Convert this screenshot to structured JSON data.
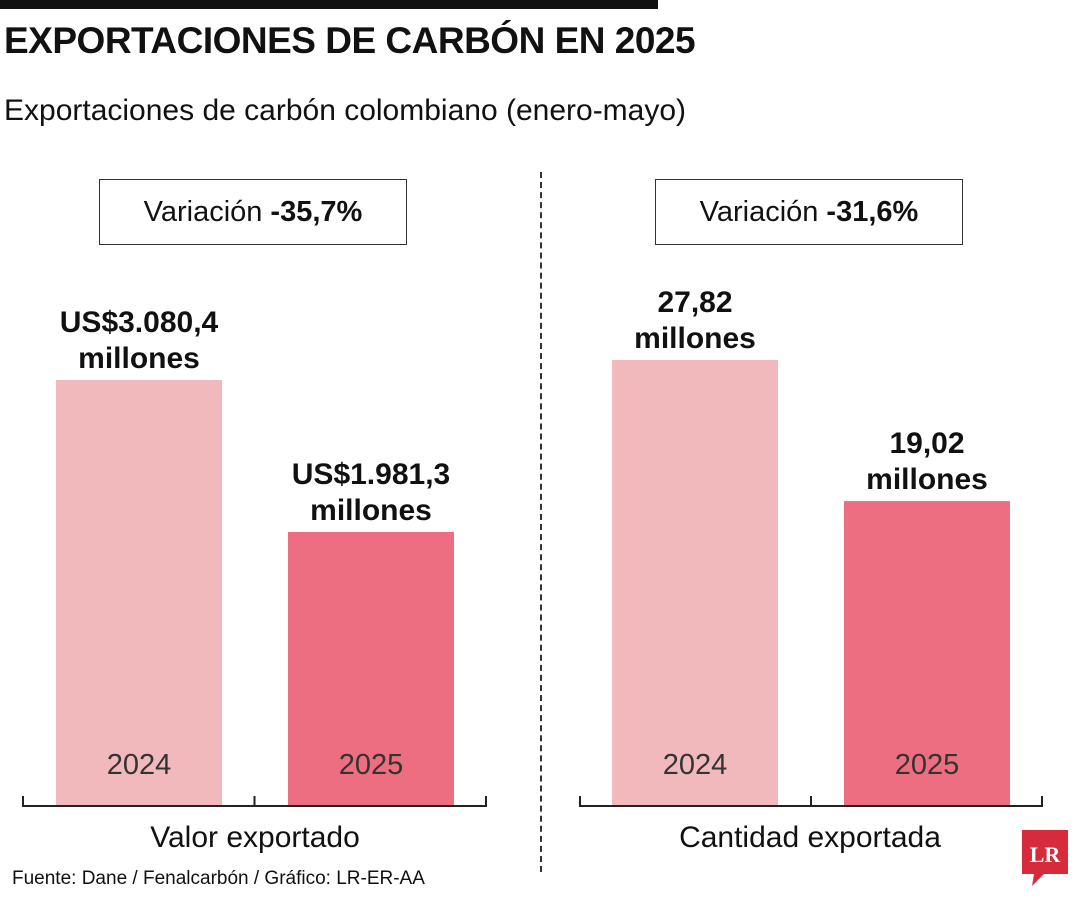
{
  "header": {
    "title": "EXPORTACIONES DE CARBÓN EN 2025",
    "subtitle": "Exportaciones de carbón colombiano (enero-mayo)"
  },
  "colors": {
    "year_2024": "#f2b9bd",
    "year_2025": "#ec6e80",
    "logo": "#d52b3a"
  },
  "chart_data": [
    {
      "type": "bar",
      "xlabel": "Valor exportado",
      "categories": [
        "2024",
        "2025"
      ],
      "values": [
        3080.4,
        1981.3
      ],
      "unit": "US$ millones",
      "data_labels": [
        [
          "US$3.080,4",
          "millones"
        ],
        [
          "US$1.981,3",
          "millones"
        ]
      ],
      "variation_label": "Variación",
      "variation_value": "-35,7%"
    },
    {
      "type": "bar",
      "xlabel": "Cantidad exportada",
      "categories": [
        "2024",
        "2025"
      ],
      "values": [
        27.82,
        19.02
      ],
      "unit": "millones",
      "data_labels": [
        [
          "27,82",
          "millones"
        ],
        [
          "19,02",
          "millones"
        ]
      ],
      "variation_label": "Variación",
      "variation_value": "-31,6%"
    }
  ],
  "footer": {
    "source": "Fuente: Dane / Fenalcarbón / Gráfico: LR-ER-AA",
    "logo_text": "LR"
  }
}
